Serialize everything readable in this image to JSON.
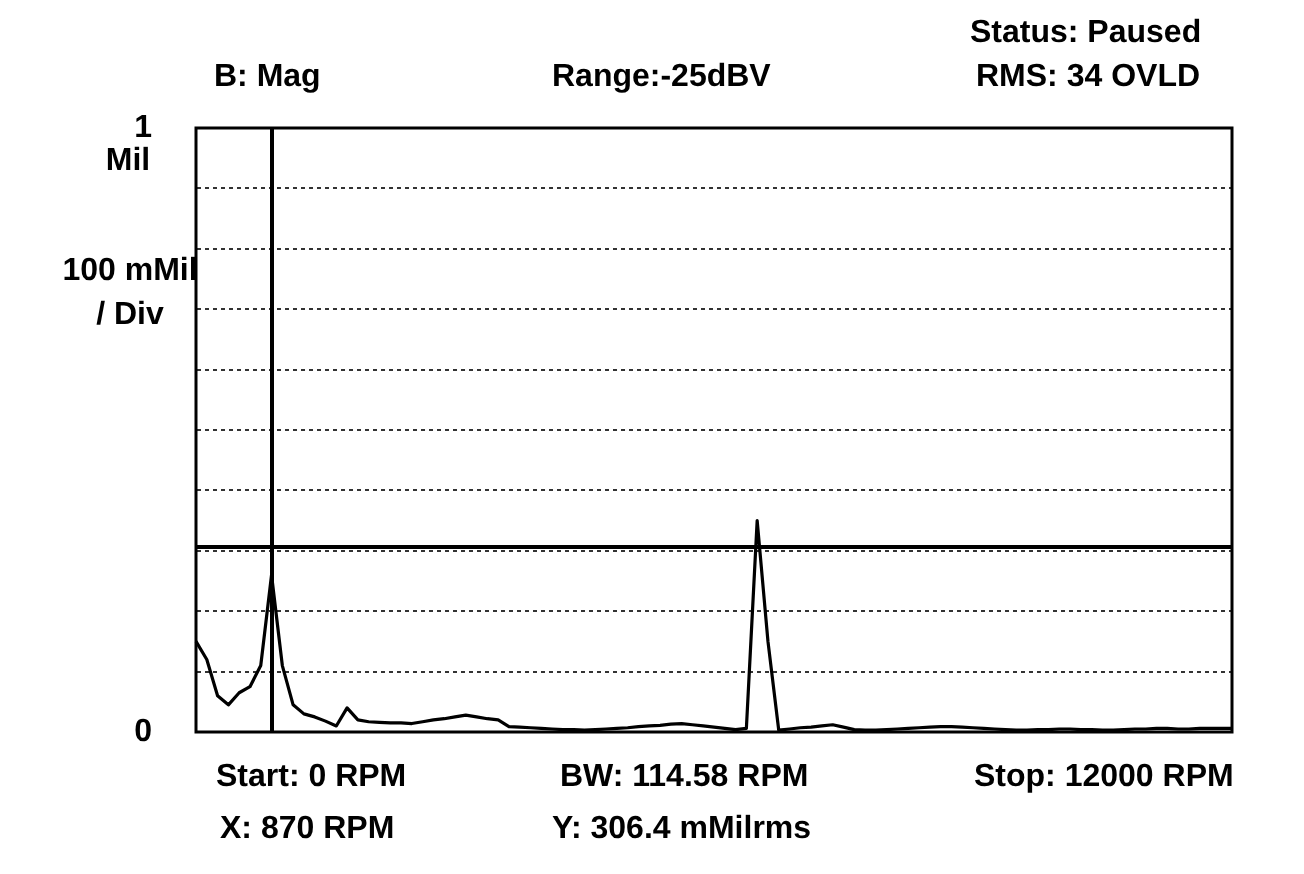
{
  "chart_data": {
    "type": "line",
    "ylabel": "Mil",
    "annotations": [
      "100 mMil / Div",
      "B: Mag",
      "Range:-25dBV",
      "Status: Paused",
      "RMS: 34 OVLD",
      "Start: 0 RPM",
      "BW: 114.58 RPM",
      "Stop: 12000 RPM",
      "X: 870 RPM",
      "Y: 306.4 mMilrms"
    ],
    "categories": [
      null,
      null,
      null,
      null,
      null,
      null,
      null,
      null,
      null,
      null,
      null,
      null,
      null,
      null,
      null,
      null,
      null,
      null,
      null,
      null,
      null,
      null,
      null,
      null,
      null,
      null,
      null,
      null,
      null,
      null,
      null,
      null,
      null,
      null,
      null,
      null,
      null,
      null,
      null,
      null,
      null,
      null,
      null,
      null,
      null,
      null,
      null,
      null,
      null,
      null,
      null,
      null,
      null,
      null,
      null,
      null,
      null,
      null,
      null,
      null,
      null,
      null,
      null,
      null,
      null,
      null,
      null,
      null,
      null,
      null,
      null,
      null,
      null,
      null,
      null,
      null,
      null,
      null,
      null,
      null,
      null,
      null,
      null,
      null,
      null,
      null,
      null,
      null,
      null,
      null,
      null,
      null,
      null,
      null,
      null,
      null,
      null
    ],
    "series": [
      {
        "color": "#000000",
        "values": [
          0.15,
          0.12,
          0.06,
          0.045,
          0.065,
          0.075,
          0.11,
          0.26,
          0.11,
          0.045,
          0.03,
          0.025,
          0.018,
          0.01,
          0.04,
          0.02,
          0.017,
          0.016,
          0.015,
          0.015,
          0.014,
          0.017,
          0.02,
          0.022,
          0.025,
          0.028,
          0.025,
          0.022,
          0.02,
          0.009,
          0.008,
          0.007,
          0.006,
          0.005,
          0.004,
          0.004,
          0.003,
          0.004,
          0.005,
          0.006,
          0.007,
          0.009,
          0.01,
          0.011,
          0.013,
          0.014,
          0.012,
          0.01,
          0.008,
          0.006,
          0.004,
          0.006,
          0.35,
          0.15,
          0.003,
          0.005,
          0.007,
          0.008,
          0.01,
          0.012,
          0.008,
          0.004,
          0.003,
          0.003,
          0.004,
          0.005,
          0.006,
          0.007,
          0.008,
          0.009,
          0.009,
          0.008,
          0.007,
          0.006,
          0.005,
          0.004,
          0.003,
          0.003,
          0.004,
          0.004,
          0.005,
          0.005,
          0.004,
          0.004,
          0.003,
          0.003,
          0.004,
          0.005,
          0.005,
          0.006,
          0.006,
          0.005,
          0.005,
          0.006,
          0.006,
          0.006,
          0.006
        ]
      }
    ],
    "ylim": [
      0,
      1
    ],
    "yticks": [
      0,
      {
        "value": 0.1,
        "label": null
      },
      {
        "value": 0.2,
        "label": null
      },
      {
        "value": 0.3,
        "label": null
      },
      {
        "value": 0.4,
        "label": null
      },
      {
        "value": 0.5,
        "label": null
      },
      {
        "value": 0.6,
        "label": null
      },
      {
        "value": 0.7,
        "label": null
      },
      {
        "value": 0.8,
        "label": null
      },
      {
        "value": 0.9,
        "label": null
      },
      1
    ],
    "tick_labels": "y",
    "grid": "y",
    "legend": false,
    "marker": "none",
    "line_style": "solid",
    "ref_lines": [
      {
        "axis": "y",
        "value": 0.3064,
        "color": "#000000"
      }
    ]
  }
}
